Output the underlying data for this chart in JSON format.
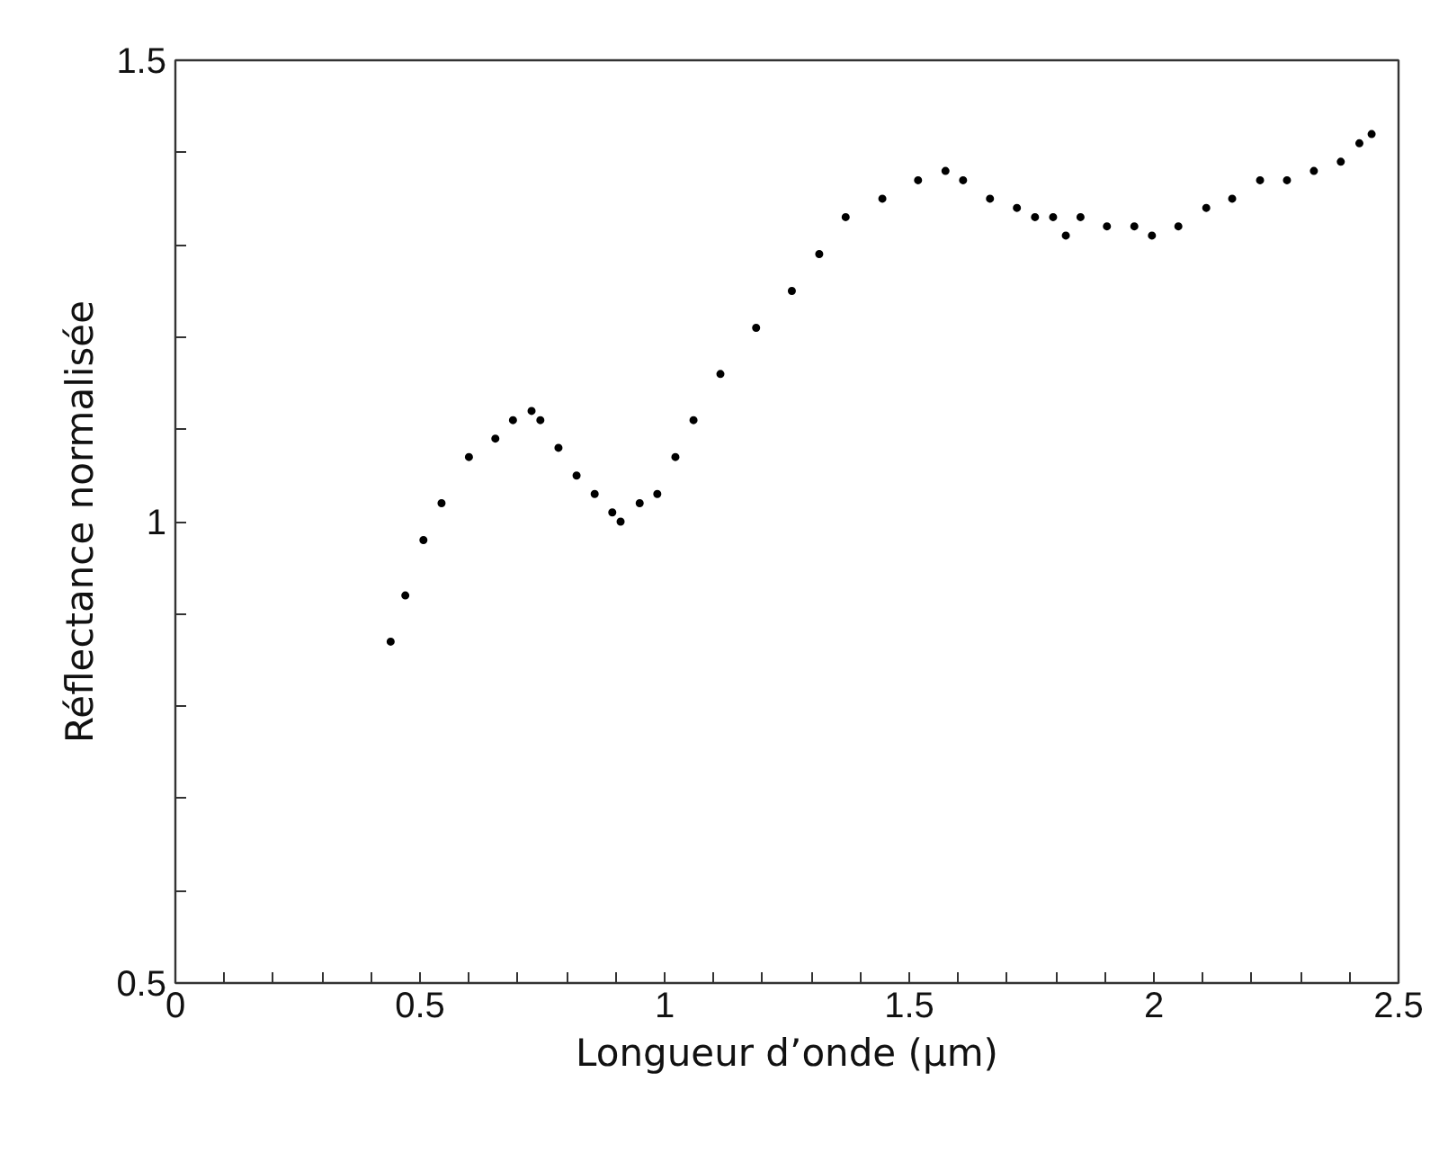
{
  "chart_data": {
    "type": "scatter",
    "xlabel": "Longueur d’onde (µm)",
    "ylabel": "Réflectance normalisée",
    "x": [
      0.44,
      0.47,
      0.507,
      0.544,
      0.6,
      0.654,
      0.69,
      0.728,
      0.746,
      0.783,
      0.82,
      0.857,
      0.893,
      0.91,
      0.949,
      0.985,
      1.022,
      1.059,
      1.114,
      1.187,
      1.26,
      1.316,
      1.37,
      1.445,
      1.518,
      1.574,
      1.61,
      1.665,
      1.72,
      1.757,
      1.794,
      1.82,
      1.85,
      1.904,
      1.96,
      1.996,
      2.05,
      2.107,
      2.16,
      2.217,
      2.272,
      2.327,
      2.382,
      2.42,
      2.445
    ],
    "series": [
      {
        "color": "#000000",
        "values": [
          0.87,
          0.92,
          0.98,
          1.02,
          1.07,
          1.09,
          1.11,
          1.12,
          1.11,
          1.08,
          1.05,
          1.03,
          1.01,
          1.0,
          1.02,
          1.03,
          1.07,
          1.11,
          1.16,
          1.21,
          1.25,
          1.29,
          1.33,
          1.35,
          1.37,
          1.38,
          1.37,
          1.35,
          1.34,
          1.33,
          1.33,
          1.31,
          1.33,
          1.32,
          1.32,
          1.31,
          1.32,
          1.34,
          1.35,
          1.37,
          1.37,
          1.38,
          1.39,
          1.41,
          1.42
        ]
      }
    ],
    "marker": "circle",
    "xlim": [
      0,
      2.5
    ],
    "ylim": [
      0.5,
      1.5
    ],
    "xticks": [
      0,
      {
        "value": 0.1,
        "label": null
      },
      {
        "value": 0.2,
        "label": null
      },
      {
        "value": 0.3,
        "label": null
      },
      {
        "value": 0.4,
        "label": null
      },
      0.5,
      {
        "value": 0.6,
        "label": null
      },
      {
        "value": 0.7,
        "label": null
      },
      {
        "value": 0.8,
        "label": null
      },
      {
        "value": 0.9,
        "label": null
      },
      1,
      {
        "value": 1.1,
        "label": null
      },
      {
        "value": 1.2,
        "label": null
      },
      {
        "value": 1.3,
        "label": null
      },
      {
        "value": 1.4,
        "label": null
      },
      1.5,
      {
        "value": 1.6,
        "label": null
      },
      {
        "value": 1.7,
        "label": null
      },
      {
        "value": 1.8,
        "label": null
      },
      {
        "value": 1.9,
        "label": null
      },
      2,
      {
        "value": 2.1,
        "label": null
      },
      {
        "value": 2.2,
        "label": null
      },
      {
        "value": 2.3,
        "label": null
      },
      {
        "value": 2.4,
        "label": null
      },
      2.5
    ],
    "yticks": [
      0.5,
      {
        "value": 0.6,
        "label": null
      },
      {
        "value": 0.7,
        "label": null
      },
      {
        "value": 0.8,
        "label": null
      },
      {
        "value": 0.9,
        "label": null
      },
      1,
      {
        "value": 1.1,
        "label": null
      },
      {
        "value": 1.2,
        "label": null
      },
      {
        "value": 1.3,
        "label": null
      },
      {
        "value": 1.4,
        "label": null
      },
      1.5
    ]
  }
}
